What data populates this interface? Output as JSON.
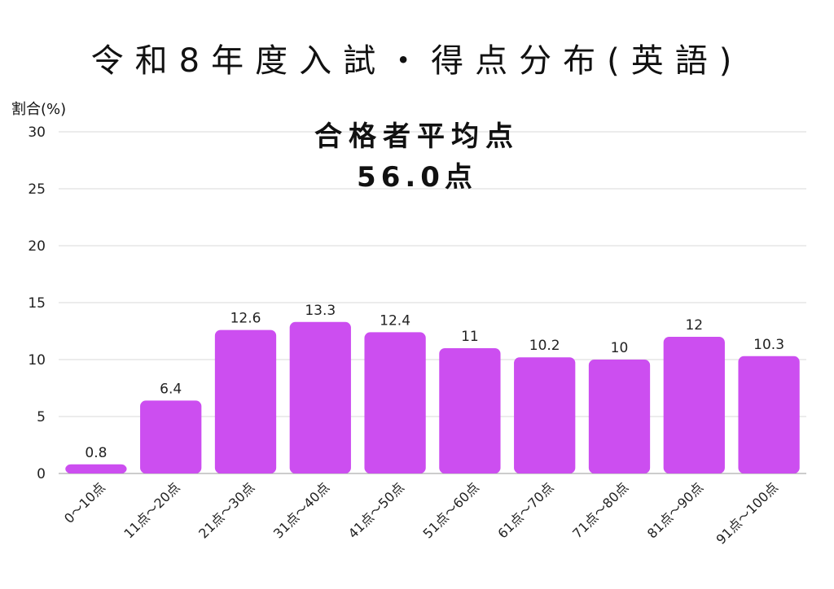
{
  "title": "令和8年度入試・得点分布(英語)",
  "subtitle_line1": "合格者平均点",
  "subtitle_line2": "56.0点",
  "chart_data": {
    "type": "bar",
    "title": "令和8年度入試・得点分布(英語)",
    "ylabel": "割合(%)",
    "xlabel": "",
    "ylim": [
      0,
      30
    ],
    "yticks": [
      0,
      5,
      10,
      15,
      20,
      25,
      30
    ],
    "grid": true,
    "bar_color": "#cc4ef0",
    "categories": [
      "0～10点",
      "11点～20点",
      "21点～30点",
      "31点～40点",
      "41点～50点",
      "51点～60点",
      "61点～70点",
      "71点～80点",
      "81点～90点",
      "91点～100点"
    ],
    "values": [
      0.8,
      6.4,
      12.6,
      13.3,
      12.4,
      11,
      10.2,
      10,
      12,
      10.3
    ],
    "value_labels": [
      "0.8",
      "6.4",
      "12.6",
      "13.3",
      "12.4",
      "11",
      "10.2",
      "10",
      "12",
      "10.3"
    ]
  }
}
